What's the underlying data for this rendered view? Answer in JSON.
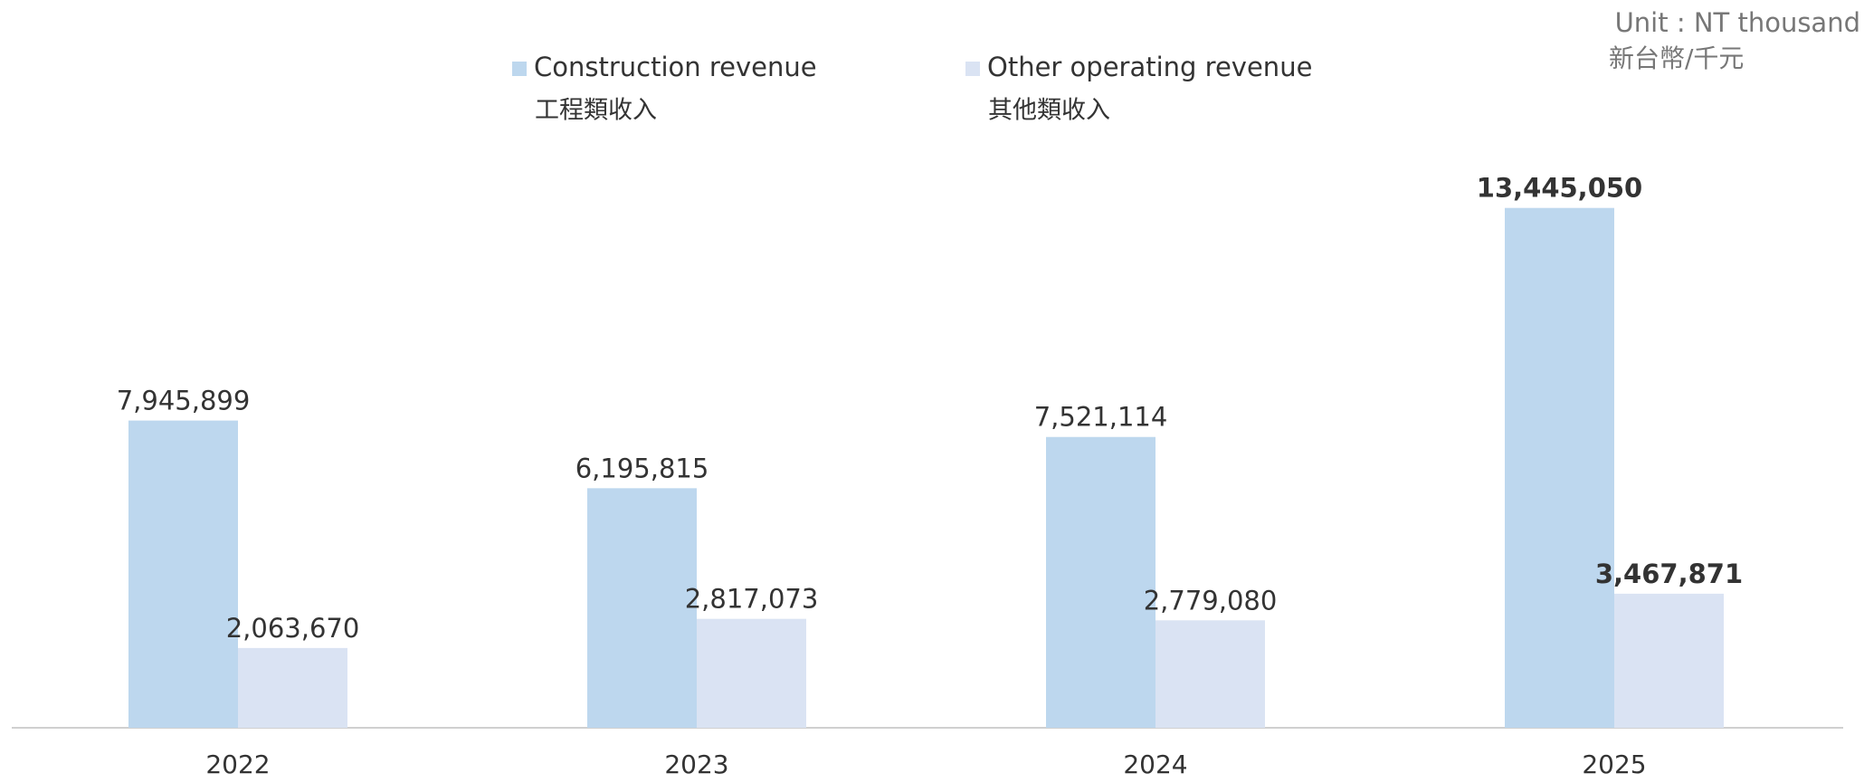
{
  "chart_data": {
    "type": "bar",
    "unit_label": [
      "Unit : NT thousand",
      "新台幣/千元"
    ],
    "categories": [
      "2022",
      "2023",
      "2024",
      "2025"
    ],
    "series": [
      {
        "name": "Construction revenue",
        "name_zh": "工程類收入",
        "color": "#bdd7ee",
        "values": [
          7945899,
          6195815,
          7521114,
          13445050
        ],
        "value_labels": [
          "7,945,899",
          "6,195,815",
          "7,521,114",
          "13,445,050"
        ]
      },
      {
        "name": "Other operating revenue",
        "name_zh": "其他類收入",
        "color": "#dae3f3",
        "values": [
          2063670,
          2817073,
          2779080,
          3467871
        ],
        "value_labels": [
          "2,063,670",
          "2,817,073",
          "2,779,080",
          "3,467,871"
        ]
      }
    ],
    "ylim": [
      0,
      14000000
    ]
  }
}
